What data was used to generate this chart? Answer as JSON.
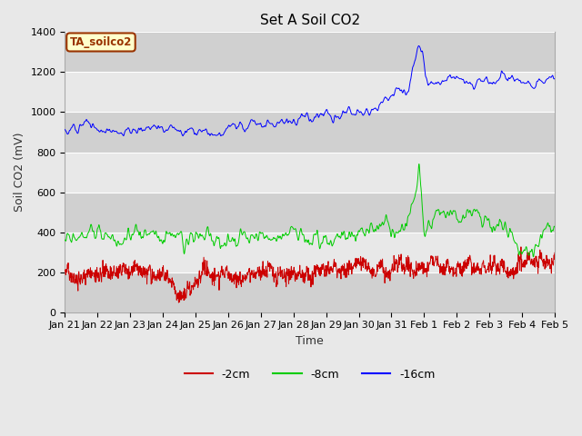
{
  "title": "Set A Soil CO2",
  "ylabel": "Soil CO2 (mV)",
  "xlabel": "Time",
  "ylim": [
    0,
    1400
  ],
  "fig_facecolor": "#E8E8E8",
  "plot_bg_color": "#DCDCDC",
  "band_light": "#E8E8E8",
  "band_dark": "#D0D0D0",
  "line_red": "#CC0000",
  "line_green": "#00CC00",
  "line_blue": "#0000FF",
  "legend_label": "TA_soilco2",
  "legend_box_facecolor": "#FFFFCC",
  "legend_box_edgecolor": "#993300",
  "tick_labels": [
    "Jan 21",
    "Jan 22",
    "Jan 23",
    "Jan 24",
    "Jan 25",
    "Jan 26",
    "Jan 27",
    "Jan 28",
    "Jan 29",
    "Jan 30",
    "Jan 31",
    "Feb 1",
    "Feb 2",
    "Feb 3",
    "Feb 4",
    "Feb 5"
  ],
  "bottom_legend": [
    "-2cm",
    "-8cm",
    "-16cm"
  ],
  "title_fontsize": 11,
  "axis_fontsize": 9,
  "tick_fontsize": 8
}
